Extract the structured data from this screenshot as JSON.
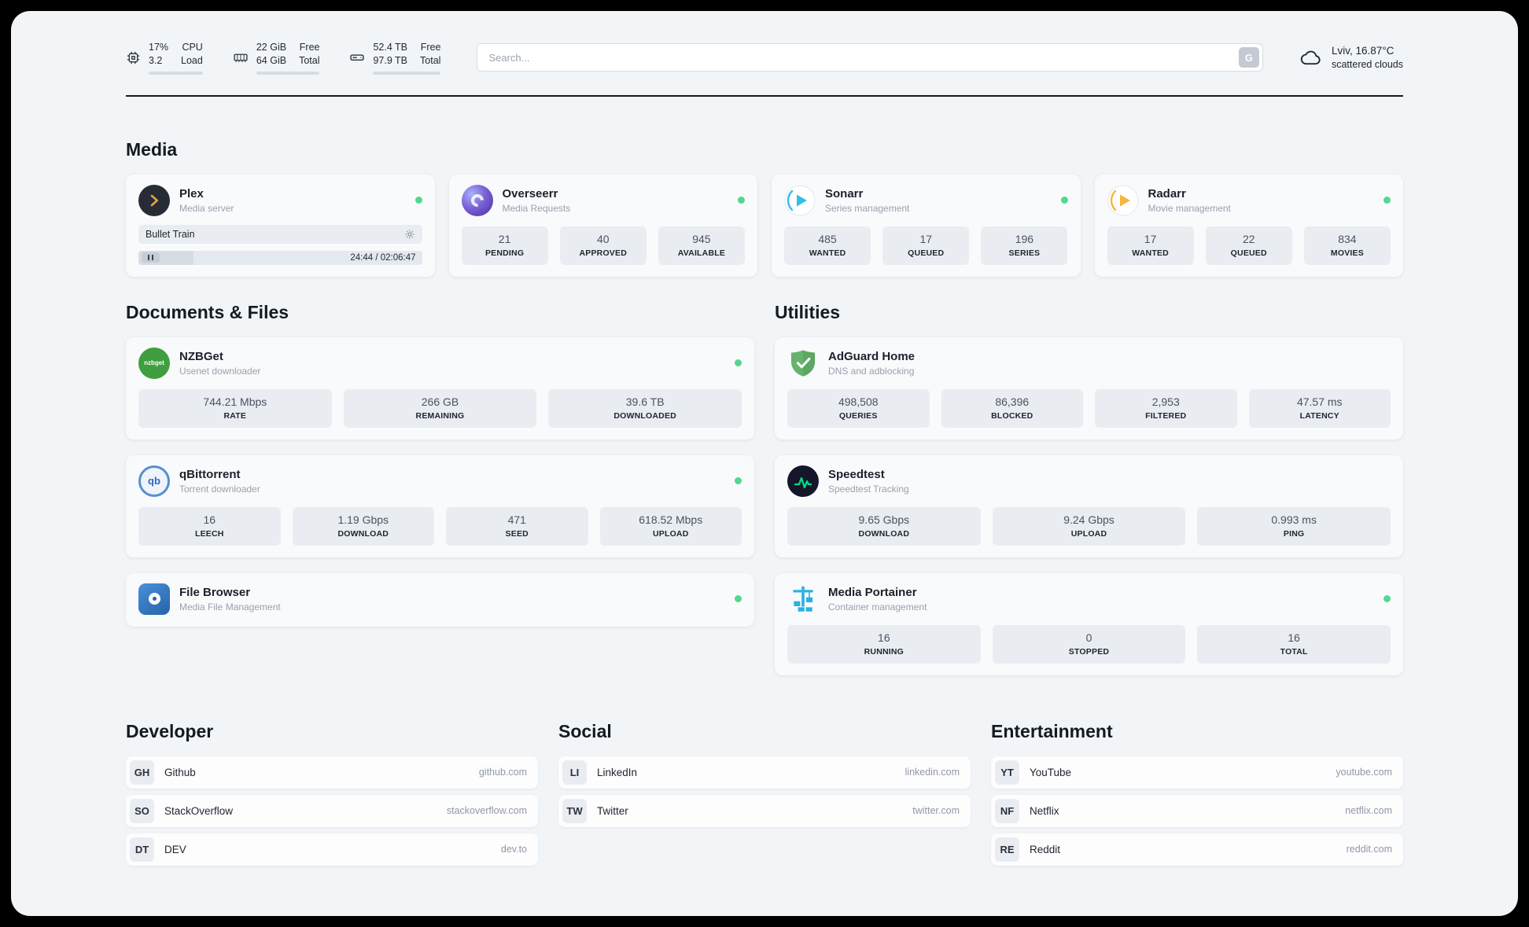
{
  "header": {
    "cpu": {
      "value1": "17%",
      "value2": "3.2",
      "label1": "CPU",
      "label2": "Load",
      "progress": 17
    },
    "ram": {
      "value1": "22 GiB",
      "value2": "64 GiB",
      "label1": "Free",
      "label2": "Total",
      "progress": 66
    },
    "disk": {
      "value1": "52.4 TB",
      "value2": "97.9 TB",
      "label1": "Free",
      "label2": "Total",
      "progress": 46
    },
    "search": {
      "placeholder": "Search...",
      "button_label": "G"
    },
    "weather": {
      "location": "Lviv, 16.87°C",
      "condition": "scattered clouds"
    }
  },
  "sections": {
    "media": "Media",
    "documents": "Documents & Files",
    "utilities": "Utilities",
    "developer": "Developer",
    "social": "Social",
    "entertainment": "Entertainment"
  },
  "media": {
    "cards": [
      {
        "name": "Plex",
        "subtitle": "Media server",
        "now_playing": {
          "title": "Bullet Train",
          "time": "24:44 / 02:06:47",
          "progress": 19.5
        }
      },
      {
        "name": "Overseerr",
        "subtitle": "Media Requests",
        "stats": [
          {
            "value": "21",
            "label": "PENDING"
          },
          {
            "value": "40",
            "label": "APPROVED"
          },
          {
            "value": "945",
            "label": "AVAILABLE"
          }
        ]
      },
      {
        "name": "Sonarr",
        "subtitle": "Series management",
        "stats": [
          {
            "value": "485",
            "label": "WANTED"
          },
          {
            "value": "17",
            "label": "QUEUED"
          },
          {
            "value": "196",
            "label": "SERIES"
          }
        ]
      },
      {
        "name": "Radarr",
        "subtitle": "Movie management",
        "stats": [
          {
            "value": "17",
            "label": "WANTED"
          },
          {
            "value": "22",
            "label": "QUEUED"
          },
          {
            "value": "834",
            "label": "MOVIES"
          }
        ]
      }
    ]
  },
  "documents": {
    "cards": [
      {
        "name": "NZBGet",
        "subtitle": "Usenet downloader",
        "icon_text": "nzbget",
        "stats": [
          {
            "value": "744.21 Mbps",
            "label": "RATE"
          },
          {
            "value": "266 GB",
            "label": "REMAINING"
          },
          {
            "value": "39.6 TB",
            "label": "DOWNLOADED"
          }
        ]
      },
      {
        "name": "qBittorrent",
        "subtitle": "Torrent downloader",
        "icon_text": "qb",
        "stats": [
          {
            "value": "16",
            "label": "LEECH"
          },
          {
            "value": "1.19 Gbps",
            "label": "DOWNLOAD"
          },
          {
            "value": "471",
            "label": "SEED"
          },
          {
            "value": "618.52 Mbps",
            "label": "UPLOAD"
          }
        ]
      },
      {
        "name": "File Browser",
        "subtitle": "Media File Management",
        "stats": []
      }
    ]
  },
  "utilities": {
    "cards": [
      {
        "name": "AdGuard Home",
        "subtitle": "DNS and adblocking",
        "stats": [
          {
            "value": "498,508",
            "label": "QUERIES"
          },
          {
            "value": "86,396",
            "label": "BLOCKED"
          },
          {
            "value": "2,953",
            "label": "FILTERED"
          },
          {
            "value": "47.57 ms",
            "label": "LATENCY"
          }
        ]
      },
      {
        "name": "Speedtest",
        "subtitle": "Speedtest Tracking",
        "stats": [
          {
            "value": "9.65 Gbps",
            "label": "DOWNLOAD"
          },
          {
            "value": "9.24 Gbps",
            "label": "UPLOAD"
          },
          {
            "value": "0.993 ms",
            "label": "PING"
          }
        ]
      },
      {
        "name": "Media Portainer",
        "subtitle": "Container management",
        "stats": [
          {
            "value": "16",
            "label": "RUNNING"
          },
          {
            "value": "0",
            "label": "STOPPED"
          },
          {
            "value": "16",
            "label": "TOTAL"
          }
        ]
      }
    ]
  },
  "bookmarks": {
    "developer": {
      "items": [
        {
          "abbr": "GH",
          "name": "Github",
          "url": "github.com"
        },
        {
          "abbr": "SO",
          "name": "StackOverflow",
          "url": "stackoverflow.com"
        },
        {
          "abbr": "DT",
          "name": "DEV",
          "url": "dev.to"
        }
      ]
    },
    "social": {
      "items": [
        {
          "abbr": "LI",
          "name": "LinkedIn",
          "url": "linkedin.com"
        },
        {
          "abbr": "TW",
          "name": "Twitter",
          "url": "twitter.com"
        }
      ]
    },
    "entertainment": {
      "items": [
        {
          "abbr": "YT",
          "name": "YouTube",
          "url": "youtube.com"
        },
        {
          "abbr": "NF",
          "name": "Netflix",
          "url": "netflix.com"
        },
        {
          "abbr": "RE",
          "name": "Reddit",
          "url": "reddit.com"
        }
      ]
    }
  }
}
